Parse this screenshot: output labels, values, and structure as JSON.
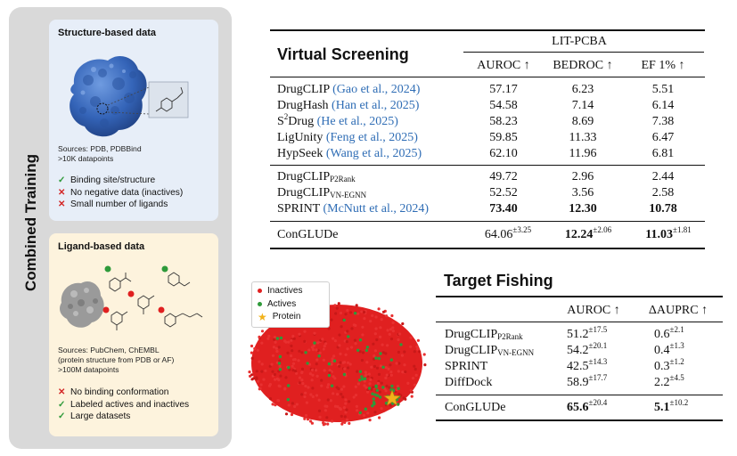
{
  "left_panel": {
    "title": "Combined Training",
    "structure": {
      "title": "Structure-based data",
      "sources_line1": "Sources: PDB, PDBBind",
      "sources_line2": ">10K datapoints",
      "bullets": [
        {
          "mark": "check",
          "text": "Binding site/structure"
        },
        {
          "mark": "cross",
          "text": "No negative data (inactives)"
        },
        {
          "mark": "cross",
          "text": "Small number of ligands"
        }
      ]
    },
    "ligand": {
      "title": "Ligand-based data",
      "sources_line1": "Sources: PubChem, ChEMBL",
      "sources_line2": "(protein structure from PDB or AF)",
      "sources_line3": ">100M datapoints",
      "bullets": [
        {
          "mark": "cross",
          "text": "No binding conformation"
        },
        {
          "mark": "check",
          "text": "Labeled actives and inactives"
        },
        {
          "mark": "check",
          "text": "Large datasets"
        }
      ]
    }
  },
  "virtual_screening": {
    "title": "Virtual Screening",
    "group_header": "LIT-PCBA",
    "columns": [
      "AUROC ↑",
      "BEDROC ↑",
      "EF 1% ↑"
    ],
    "rows": [
      {
        "name": "DrugCLIP",
        "cite": "(Gao et al., 2024)",
        "v": [
          "57.17",
          "6.23",
          "5.51"
        ]
      },
      {
        "name": "DrugHash",
        "cite": "(Han et al., 2025)",
        "v": [
          "54.58",
          "7.14",
          "6.14"
        ]
      },
      {
        "name": "S",
        "name_sup": "2",
        "name_rest": "Drug",
        "cite": "(He et al., 2025)",
        "v": [
          "58.23",
          "8.69",
          "7.38"
        ]
      },
      {
        "name": "LigUnity",
        "cite": "(Feng et al., 2025)",
        "v": [
          "59.85",
          "11.33",
          "6.47"
        ]
      },
      {
        "name": "HypSeek",
        "cite": "(Wang et al., 2025)",
        "v": [
          "62.10",
          "11.96",
          "6.81"
        ]
      },
      {
        "name": "DrugCLIP",
        "name_sub": "P2Rank",
        "v": [
          "49.72",
          "2.96",
          "2.44"
        ]
      },
      {
        "name": "DrugCLIP",
        "name_sub": "VN-EGNN",
        "v": [
          "52.52",
          "3.56",
          "2.58"
        ]
      },
      {
        "name": "SPRINT",
        "cite": "(McNutt et al., 2024)",
        "v": [
          "73.40",
          "12.30",
          "10.78"
        ]
      }
    ],
    "ours": {
      "name": "ConGLUDe",
      "v": [
        "64.06",
        "12.24",
        "11.03"
      ],
      "pm": [
        "±3.25",
        "±2.06",
        "±1.81"
      ]
    }
  },
  "target_fishing": {
    "title": "Target Fishing",
    "columns": [
      "AUROC ↑",
      "ΔAUPRC ↑"
    ],
    "rows": [
      {
        "name": "DrugCLIP",
        "name_sub": "P2Rank",
        "v": [
          "51.2",
          "0.6"
        ],
        "pm": [
          "±17.5",
          "±2.1"
        ]
      },
      {
        "name": "DrugCLIP",
        "name_sub": "VN-EGNN",
        "v": [
          "54.2",
          "0.4"
        ],
        "pm": [
          "±20.1",
          "±1.3"
        ]
      },
      {
        "name": "SPRINT",
        "v": [
          "42.5",
          "0.3"
        ],
        "pm": [
          "±14.3",
          "±1.2"
        ]
      },
      {
        "name": "DiffDock",
        "v": [
          "58.9",
          "2.2"
        ],
        "pm": [
          "±17.7",
          "±4.5"
        ]
      }
    ],
    "ours": {
      "name": "ConGLUDe",
      "v": [
        "65.6",
        "5.1"
      ],
      "pm": [
        "±20.4",
        "±10.2"
      ]
    }
  },
  "scatter": {
    "legend": [
      {
        "label": "Inactives",
        "color": "#e02020",
        "shape": "dot"
      },
      {
        "label": "Actives",
        "color": "#2e9a3a",
        "shape": "dot"
      },
      {
        "label": "Protein",
        "color": "#f2b21a",
        "shape": "star"
      }
    ]
  },
  "colors": {
    "cite": "#2f6db5",
    "check": "#2e9a3a",
    "cross": "#d32626",
    "protein": "#3a6fc4"
  }
}
